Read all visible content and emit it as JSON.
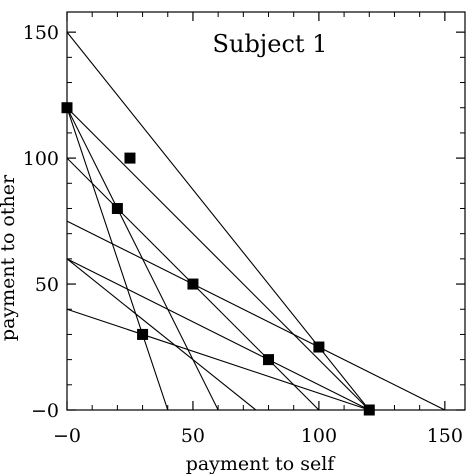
{
  "chart_data": {
    "type": "scatter",
    "title": "Subject 1",
    "xlabel": "payment to self",
    "ylabel": "payment to other",
    "xlim": [
      0,
      158
    ],
    "ylim": [
      0,
      158
    ],
    "x_ticks": [
      0,
      50,
      100,
      150
    ],
    "y_ticks": [
      0,
      50,
      100,
      150
    ],
    "x_tick_labels": [
      "−0",
      "50",
      "100",
      "150"
    ],
    "y_tick_labels": [
      "−0",
      "50",
      "100",
      "150"
    ],
    "budget_lines": [
      {
        "x1": 0,
        "y1": 150,
        "x2": 120,
        "y2": 0
      },
      {
        "x1": 0,
        "y1": 120,
        "x2": 120,
        "y2": 0
      },
      {
        "x1": 0,
        "y1": 120,
        "x2": 60,
        "y2": 0
      },
      {
        "x1": 0,
        "y1": 120,
        "x2": 40,
        "y2": 0
      },
      {
        "x1": 0,
        "y1": 100,
        "x2": 100,
        "y2": 0
      },
      {
        "x1": 0,
        "y1": 75,
        "x2": 150,
        "y2": 0
      },
      {
        "x1": 0,
        "y1": 60,
        "x2": 120,
        "y2": 0
      },
      {
        "x1": 0,
        "y1": 60,
        "x2": 75,
        "y2": 0
      },
      {
        "x1": 0,
        "y1": 40,
        "x2": 120,
        "y2": 0
      }
    ],
    "points": [
      {
        "x": 0,
        "y": 120
      },
      {
        "x": 25,
        "y": 100
      },
      {
        "x": 20,
        "y": 80
      },
      {
        "x": 50,
        "y": 50
      },
      {
        "x": 30,
        "y": 30
      },
      {
        "x": 80,
        "y": 20
      },
      {
        "x": 100,
        "y": 25
      },
      {
        "x": 120,
        "y": 0
      }
    ],
    "grid": false,
    "legend": "none",
    "marker": "filled-square"
  }
}
